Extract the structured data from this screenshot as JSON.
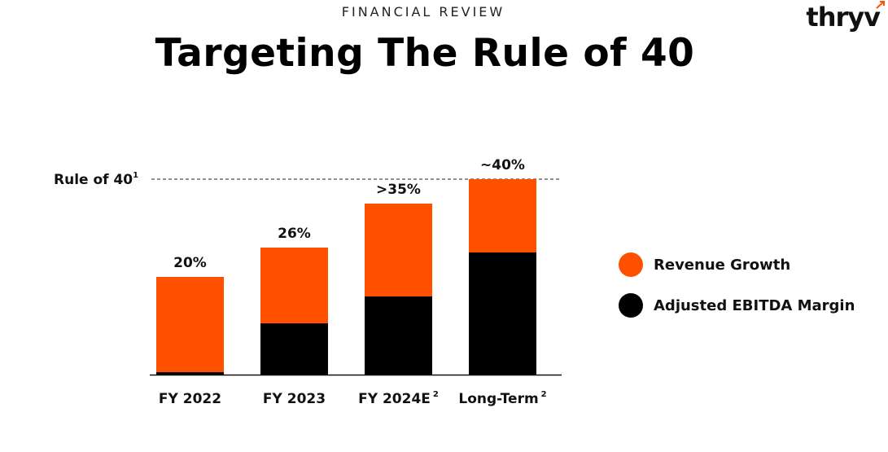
{
  "header": {
    "kicker": "FINANCIAL REVIEW",
    "title": "Targeting The Rule of 40",
    "logo_text": "thryv"
  },
  "colors": {
    "revenue": "#FF5000",
    "ebitda": "#000000",
    "brand_orange": "#FF5000"
  },
  "chart_data": {
    "type": "bar",
    "stacked": true,
    "categories": [
      "FY 2022",
      "FY 2023",
      "FY 2024E",
      "Long-Term"
    ],
    "category_superscripts": [
      "",
      "",
      "2",
      "2"
    ],
    "series": [
      {
        "name": "Adjusted EBITDA Margin",
        "values": [
          0.5,
          10.5,
          16,
          25
        ]
      },
      {
        "name": "Revenue Growth",
        "values": [
          19.5,
          15.5,
          19,
          15
        ]
      }
    ],
    "total_labels": [
      "20%",
      "26%",
      ">35%",
      "~40%"
    ],
    "reference_line": {
      "label": "Rule of 40",
      "superscript": "1",
      "value": 40
    },
    "ylim": [
      0,
      46
    ],
    "grid": false,
    "legend_position": "right"
  }
}
